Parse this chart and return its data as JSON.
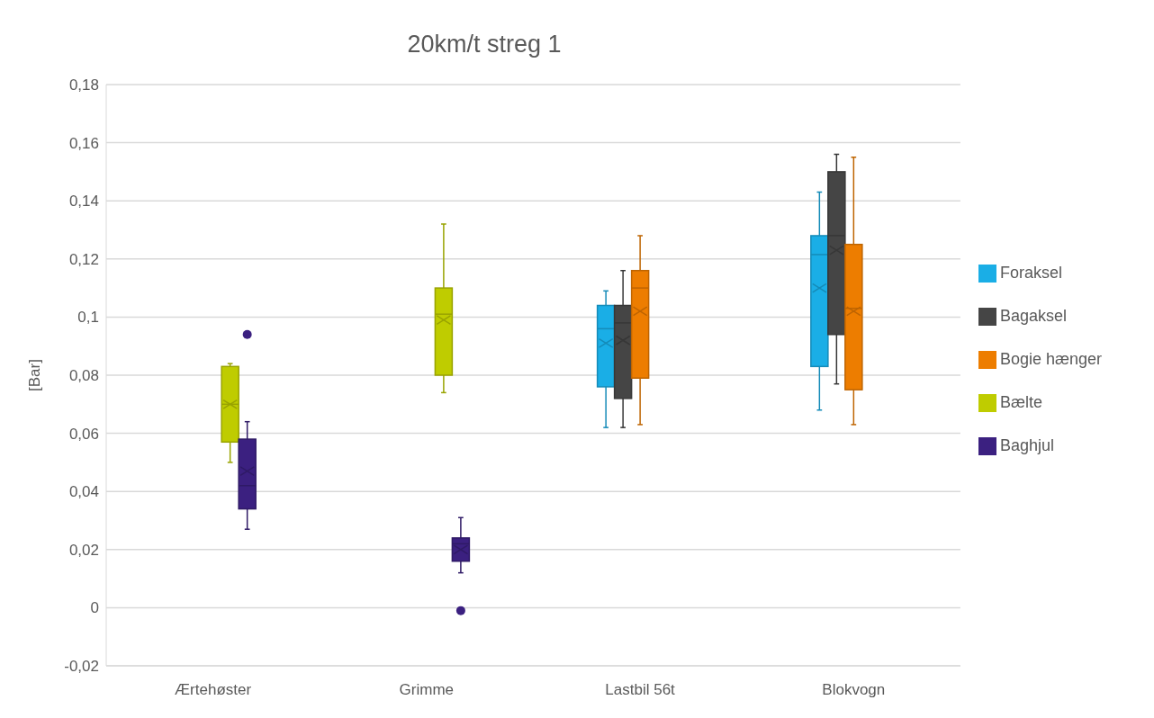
{
  "chart_data": {
    "type": "box",
    "title": "20km/t streg 1",
    "ylabel": "[Bar]",
    "categories": [
      "Ærtehøster",
      "Grimme",
      "Lastbil 56t",
      "Blokvogn"
    ],
    "ylim": [
      -0.02,
      0.18
    ],
    "yticks": [
      {
        "value": -0.02,
        "label": "-0,02"
      },
      {
        "value": 0,
        "label": "0"
      },
      {
        "value": 0.02,
        "label": "0,02"
      },
      {
        "value": 0.04,
        "label": "0,04"
      },
      {
        "value": 0.06,
        "label": "0,06"
      },
      {
        "value": 0.08,
        "label": "0,08"
      },
      {
        "value": 0.1,
        "label": "0,1"
      },
      {
        "value": 0.12,
        "label": "0,12"
      },
      {
        "value": 0.14,
        "label": "0,14"
      },
      {
        "value": 0.16,
        "label": "0,16"
      },
      {
        "value": 0.18,
        "label": "0,18"
      }
    ],
    "grid": "y",
    "legend": "right",
    "marker": "cross",
    "series": [
      {
        "name": "Foraksel",
        "color": "#1aaee6",
        "boxes": [
          null,
          null,
          {
            "low": 0.062,
            "q1": 0.076,
            "median": 0.096,
            "q3": 0.104,
            "high": 0.109,
            "mean": 0.091
          },
          {
            "low": 0.068,
            "q1": 0.083,
            "median": 0.1215,
            "q3": 0.128,
            "high": 0.143,
            "mean": 0.11
          }
        ]
      },
      {
        "name": "Bagaksel",
        "color": "#454545",
        "boxes": [
          null,
          null,
          {
            "low": 0.062,
            "q1": 0.072,
            "median": 0.098,
            "q3": 0.104,
            "high": 0.116,
            "mean": 0.092
          },
          {
            "low": 0.077,
            "q1": 0.094,
            "median": 0.128,
            "q3": 0.15,
            "high": 0.156,
            "mean": 0.123
          }
        ]
      },
      {
        "name": "Bogie hænger",
        "color": "#ed7d00",
        "boxes": [
          null,
          null,
          {
            "low": 0.063,
            "q1": 0.079,
            "median": 0.11,
            "q3": 0.116,
            "high": 0.128,
            "mean": 0.102
          },
          {
            "low": 0.063,
            "q1": 0.075,
            "median": 0.103,
            "q3": 0.125,
            "high": 0.155,
            "mean": 0.102
          }
        ]
      },
      {
        "name": "Bælte",
        "color": "#bfcc00",
        "boxes": [
          {
            "low": 0.05,
            "q1": 0.057,
            "median": 0.07,
            "q3": 0.083,
            "high": 0.084,
            "mean": 0.07
          },
          {
            "low": 0.074,
            "q1": 0.08,
            "median": 0.101,
            "q3": 0.11,
            "high": 0.132,
            "mean": 0.099
          },
          null,
          null
        ]
      },
      {
        "name": "Baghjul",
        "color": "#3b2080",
        "boxes": [
          {
            "low": 0.027,
            "q1": 0.034,
            "median": 0.042,
            "q3": 0.058,
            "high": 0.064,
            "mean": 0.047,
            "outliers": [
              0.094
            ]
          },
          {
            "low": 0.012,
            "q1": 0.016,
            "median": 0.022,
            "q3": 0.024,
            "high": 0.031,
            "mean": 0.02,
            "outliers": [
              -0.001
            ]
          },
          null,
          null
        ]
      }
    ]
  }
}
